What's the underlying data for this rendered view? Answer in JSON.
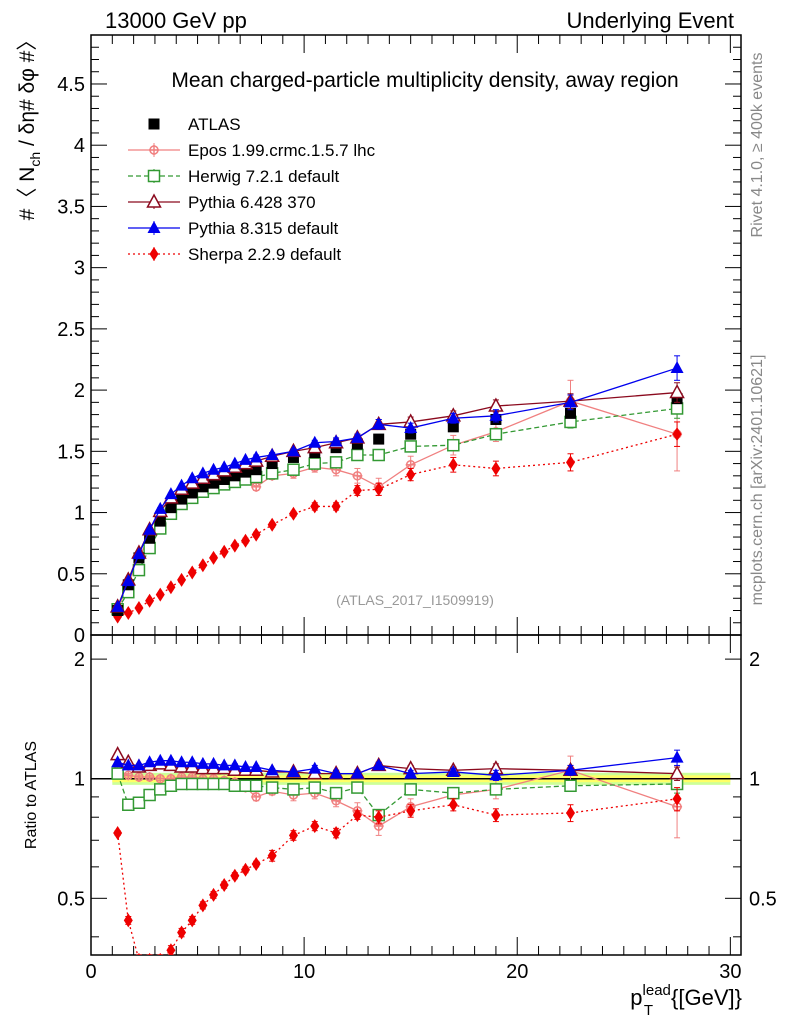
{
  "header": {
    "left": "13000 GeV pp",
    "right": "Underlying Event"
  },
  "side_labels": {
    "rivet": "Rivet 4.1.0, ≥ 400k events",
    "mcplots": "mcplots.cern.ch [arXiv:2401.10621]"
  },
  "colors": {
    "atlas": "#000000",
    "epos": "#f08080",
    "herwig": "#339933",
    "pythia6": "#8b0a1e",
    "pythia8": "#0000ee",
    "sherpa": "#ee0000",
    "band_inner": "#ffff66",
    "band_outer": "#ccff99"
  },
  "chart_data": [
    {
      "type": "scatter",
      "title": "Mean charged-particle multiplicity density, away region",
      "analysis_label": "(ATLAS_2017_I1509919)",
      "ylabel": "#〈 N_ch / δη# δφ #〉",
      "xlim": [
        0,
        30.5
      ],
      "ylim": [
        0,
        4.9
      ],
      "yticks": [
        0,
        0.5,
        1,
        1.5,
        2,
        2.5,
        3,
        3.5,
        4,
        4.5
      ],
      "ytick_labels": [
        "0",
        "0.5",
        "1",
        "1.5",
        "2",
        "2.5",
        "3",
        "3.5",
        "4",
        "4.5"
      ],
      "x": [
        1.25,
        1.75,
        2.25,
        2.75,
        3.25,
        3.75,
        4.25,
        4.75,
        5.25,
        5.75,
        6.25,
        6.75,
        7.25,
        7.75,
        8.5,
        9.5,
        10.5,
        11.5,
        12.5,
        13.5,
        15.0,
        17.0,
        19.0,
        22.5,
        27.5
      ],
      "legend": [
        "ATLAS",
        "Epos 1.99.crmc.1.5.7 lhc",
        "Herwig 7.2.1 default",
        "Pythia 6.428 370",
        "Pythia 8.315 default",
        "Sherpa 2.2.9 default"
      ],
      "series": [
        {
          "key": "atlas",
          "name": "ATLAS",
          "values": [
            0.2,
            0.41,
            0.63,
            0.79,
            0.93,
            1.04,
            1.11,
            1.16,
            1.21,
            1.24,
            1.27,
            1.3,
            1.33,
            1.35,
            1.4,
            1.45,
            1.49,
            1.53,
            1.56,
            1.6,
            1.64,
            1.7,
            1.76,
            1.81,
            1.93
          ]
        },
        {
          "key": "epos",
          "name": "Epos 1.99.crmc.1.5.7 lhc",
          "values": [
            0.21,
            0.42,
            0.64,
            0.8,
            0.93,
            1.04,
            1.12,
            1.17,
            1.21,
            1.24,
            1.26,
            1.27,
            1.27,
            1.21,
            1.3,
            1.32,
            1.37,
            1.35,
            1.3,
            1.21,
            1.39,
            1.55,
            1.66,
            1.91,
            1.64
          ],
          "errors": [
            0.01,
            0.01,
            0.01,
            0.01,
            0.01,
            0.01,
            0.01,
            0.01,
            0.01,
            0.01,
            0.02,
            0.02,
            0.02,
            0.03,
            0.03,
            0.04,
            0.04,
            0.05,
            0.06,
            0.07,
            0.07,
            0.08,
            0.08,
            0.17,
            0.3
          ]
        },
        {
          "key": "herwig",
          "name": "Herwig 7.2.1 default",
          "values": [
            0.21,
            0.35,
            0.53,
            0.71,
            0.87,
            0.99,
            1.07,
            1.12,
            1.17,
            1.2,
            1.23,
            1.25,
            1.27,
            1.29,
            1.32,
            1.35,
            1.4,
            1.41,
            1.47,
            1.47,
            1.54,
            1.55,
            1.64,
            1.74,
            1.85
          ],
          "errors": [
            0.01,
            0.01,
            0.01,
            0.01,
            0.01,
            0.01,
            0.01,
            0.01,
            0.01,
            0.01,
            0.01,
            0.01,
            0.01,
            0.01,
            0.02,
            0.02,
            0.02,
            0.02,
            0.03,
            0.03,
            0.03,
            0.04,
            0.04,
            0.05,
            0.08
          ]
        },
        {
          "key": "pythia6",
          "name": "Pythia 6.428 370",
          "values": [
            0.23,
            0.45,
            0.67,
            0.86,
            1.01,
            1.12,
            1.19,
            1.24,
            1.28,
            1.31,
            1.34,
            1.37,
            1.4,
            1.42,
            1.46,
            1.5,
            1.53,
            1.57,
            1.61,
            1.72,
            1.74,
            1.79,
            1.87,
            1.91,
            1.98
          ],
          "errors": [
            0.01,
            0.01,
            0.01,
            0.01,
            0.01,
            0.01,
            0.01,
            0.01,
            0.01,
            0.01,
            0.01,
            0.01,
            0.01,
            0.01,
            0.02,
            0.02,
            0.02,
            0.03,
            0.03,
            0.04,
            0.04,
            0.04,
            0.05,
            0.06,
            0.08
          ]
        },
        {
          "key": "pythia8",
          "name": "Pythia 8.315 default",
          "values": [
            0.23,
            0.44,
            0.66,
            0.86,
            1.03,
            1.15,
            1.22,
            1.28,
            1.32,
            1.35,
            1.37,
            1.4,
            1.43,
            1.45,
            1.47,
            1.5,
            1.57,
            1.58,
            1.61,
            1.72,
            1.69,
            1.77,
            1.79,
            1.9,
            2.18
          ],
          "errors": [
            0.01,
            0.01,
            0.01,
            0.01,
            0.01,
            0.01,
            0.01,
            0.01,
            0.01,
            0.01,
            0.01,
            0.01,
            0.01,
            0.02,
            0.02,
            0.02,
            0.02,
            0.03,
            0.03,
            0.04,
            0.04,
            0.04,
            0.05,
            0.06,
            0.1
          ]
        },
        {
          "key": "sherpa",
          "name": "Sherpa 2.2.9 default",
          "values": [
            0.15,
            0.18,
            0.22,
            0.28,
            0.33,
            0.39,
            0.45,
            0.51,
            0.57,
            0.63,
            0.68,
            0.73,
            0.77,
            0.82,
            0.9,
            0.99,
            1.05,
            1.05,
            1.18,
            1.19,
            1.31,
            1.39,
            1.36,
            1.41,
            1.64
          ],
          "errors": [
            0.01,
            0.01,
            0.01,
            0.01,
            0.01,
            0.01,
            0.01,
            0.01,
            0.01,
            0.01,
            0.01,
            0.01,
            0.02,
            0.02,
            0.02,
            0.02,
            0.03,
            0.03,
            0.04,
            0.05,
            0.05,
            0.06,
            0.06,
            0.07,
            0.1
          ]
        }
      ]
    },
    {
      "type": "scatter",
      "title": "",
      "ylabel": "Ratio to ATLAS",
      "xlabel": "p_T^lead {[GeV]}",
      "xlim": [
        0,
        30.5
      ],
      "ylim": [
        0.36,
        2.3
      ],
      "yticks": [
        0.5,
        1,
        2
      ],
      "ytick_labels": [
        "0.5",
        "1",
        "2"
      ],
      "xticks": [
        0,
        10,
        20,
        30
      ],
      "xtick_labels": [
        "0",
        "10",
        "20",
        "30"
      ],
      "reference_band": {
        "inner": 0.02,
        "outer": 0.035
      },
      "x": [
        1.25,
        1.75,
        2.25,
        2.75,
        3.25,
        3.75,
        4.25,
        4.75,
        5.25,
        5.75,
        6.25,
        6.75,
        7.25,
        7.75,
        8.5,
        9.5,
        10.5,
        11.5,
        12.5,
        13.5,
        15.0,
        17.0,
        19.0,
        22.5,
        27.5
      ],
      "series": [
        {
          "key": "epos",
          "name": "Epos 1.99.crmc.1.5.7 lhc",
          "values": [
            1.05,
            1.02,
            1.01,
            1.01,
            1.0,
            1.0,
            1.01,
            1.01,
            1.0,
            1.0,
            0.99,
            0.98,
            0.95,
            0.9,
            0.93,
            0.91,
            0.92,
            0.88,
            0.83,
            0.76,
            0.85,
            0.91,
            0.94,
            1.05,
            0.85
          ],
          "errors": [
            0.01,
            0.01,
            0.01,
            0.01,
            0.01,
            0.01,
            0.01,
            0.01,
            0.01,
            0.01,
            0.01,
            0.01,
            0.02,
            0.02,
            0.02,
            0.03,
            0.03,
            0.03,
            0.04,
            0.04,
            0.04,
            0.04,
            0.05,
            0.09,
            0.14
          ]
        },
        {
          "key": "herwig",
          "name": "Herwig 7.2.1 default",
          "values": [
            1.03,
            0.86,
            0.87,
            0.91,
            0.94,
            0.96,
            0.97,
            0.97,
            0.97,
            0.97,
            0.97,
            0.96,
            0.96,
            0.96,
            0.95,
            0.94,
            0.95,
            0.92,
            0.95,
            0.81,
            0.94,
            0.92,
            0.94,
            0.96,
            0.97
          ],
          "errors": [
            0.01,
            0.01,
            0.01,
            0.01,
            0.01,
            0.01,
            0.01,
            0.01,
            0.01,
            0.01,
            0.01,
            0.01,
            0.01,
            0.01,
            0.01,
            0.01,
            0.02,
            0.02,
            0.02,
            0.02,
            0.02,
            0.02,
            0.03,
            0.03,
            0.05
          ]
        },
        {
          "key": "pythia6",
          "name": "Pythia 6.428 370",
          "values": [
            1.15,
            1.1,
            1.07,
            1.08,
            1.09,
            1.08,
            1.07,
            1.07,
            1.06,
            1.06,
            1.06,
            1.05,
            1.05,
            1.05,
            1.04,
            1.04,
            1.03,
            1.03,
            1.03,
            1.08,
            1.06,
            1.05,
            1.06,
            1.05,
            1.03
          ],
          "errors": [
            0.01,
            0.01,
            0.01,
            0.01,
            0.01,
            0.01,
            0.01,
            0.01,
            0.01,
            0.01,
            0.01,
            0.01,
            0.01,
            0.01,
            0.01,
            0.01,
            0.02,
            0.02,
            0.02,
            0.02,
            0.02,
            0.02,
            0.03,
            0.03,
            0.04
          ]
        },
        {
          "key": "pythia8",
          "name": "Pythia 8.315 default",
          "values": [
            1.1,
            1.08,
            1.08,
            1.1,
            1.11,
            1.11,
            1.1,
            1.1,
            1.09,
            1.09,
            1.08,
            1.08,
            1.07,
            1.07,
            1.05,
            1.04,
            1.06,
            1.03,
            1.03,
            1.08,
            1.03,
            1.04,
            1.02,
            1.05,
            1.13
          ],
          "errors": [
            0.01,
            0.01,
            0.01,
            0.01,
            0.01,
            0.01,
            0.01,
            0.01,
            0.01,
            0.01,
            0.01,
            0.01,
            0.01,
            0.01,
            0.01,
            0.01,
            0.02,
            0.02,
            0.02,
            0.02,
            0.02,
            0.02,
            0.03,
            0.03,
            0.05
          ]
        },
        {
          "key": "sherpa",
          "name": "Sherpa 2.2.9 default",
          "values": [
            0.73,
            0.44,
            0.35,
            0.35,
            0.35,
            0.37,
            0.41,
            0.44,
            0.48,
            0.51,
            0.54,
            0.57,
            0.59,
            0.61,
            0.64,
            0.72,
            0.76,
            0.73,
            0.81,
            0.8,
            0.83,
            0.86,
            0.81,
            0.82,
            0.89
          ],
          "errors": [
            0.01,
            0.01,
            0.01,
            0.01,
            0.01,
            0.01,
            0.01,
            0.01,
            0.01,
            0.01,
            0.01,
            0.01,
            0.01,
            0.01,
            0.02,
            0.02,
            0.02,
            0.02,
            0.02,
            0.03,
            0.03,
            0.03,
            0.03,
            0.04,
            0.06
          ]
        }
      ]
    }
  ]
}
